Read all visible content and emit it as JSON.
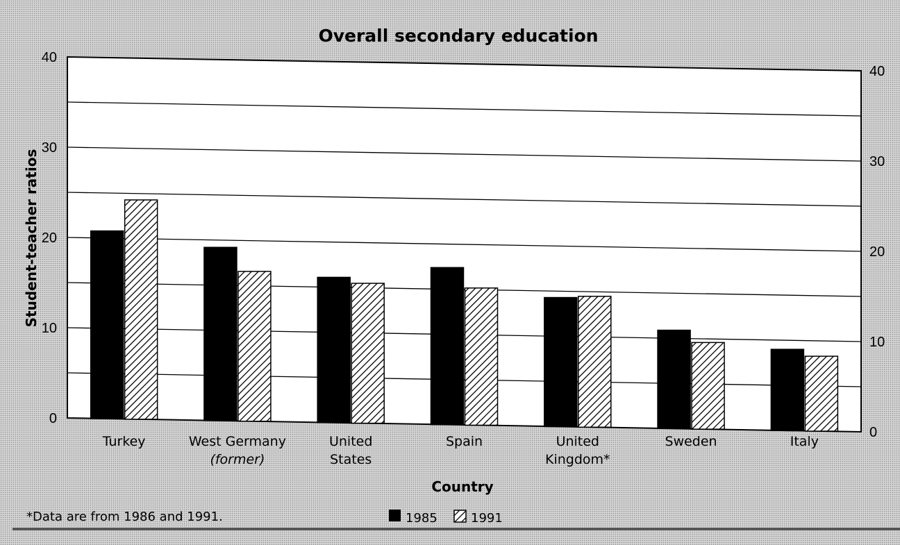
{
  "chart_data": {
    "type": "bar",
    "title": "Overall secondary education",
    "xlabel": "Country",
    "ylabel": "Student-teacher ratios",
    "ylim": [
      0,
      40
    ],
    "yticks": [
      "0",
      "10",
      "20",
      "30",
      "40"
    ],
    "categories": [
      [
        "Turkey"
      ],
      [
        "West Germany",
        "(former)"
      ],
      [
        "United",
        "States"
      ],
      [
        "Spain"
      ],
      [
        "United",
        "Kingdom*"
      ],
      [
        "Sweden"
      ],
      [
        "Italy"
      ]
    ],
    "series": [
      {
        "name": "1985",
        "values": [
          20.8,
          19.2,
          16.1,
          17.4,
          14.3,
          10.9,
          9.0
        ],
        "color": "#000000",
        "pattern": "solid"
      },
      {
        "name": "1991",
        "values": [
          24.3,
          16.6,
          15.5,
          15.2,
          14.5,
          9.6,
          8.3
        ],
        "color": "#000000",
        "pattern": "diagonal-hatch"
      }
    ],
    "grid": true,
    "legend": "bottom-center",
    "footnote": "*Data are from 1986 and 1991."
  }
}
